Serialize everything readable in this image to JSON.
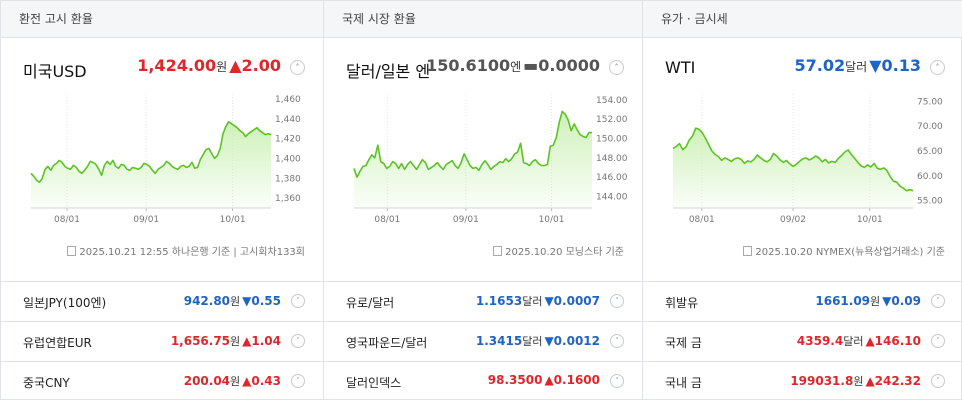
{
  "panels": [
    {
      "tab": "환전 고시 환율",
      "name": "미국USD",
      "value": "1,424.00",
      "unit": "원",
      "change": "▲2.00",
      "dir": "up",
      "toggle": "˄",
      "source": "2025.10.21 12:55 하나은행 기준 | 고시회차133회",
      "chart_data": {
        "type": "area",
        "x_ticks": [
          "08/01",
          "09/01",
          "10/01"
        ],
        "ylim": [
          1350,
          1465
        ],
        "y_ticks": [
          "1,460",
          "1,440",
          "1,420",
          "1,400",
          "1,380",
          "1,360"
        ],
        "y_tick_values": [
          1460,
          1440,
          1420,
          1400,
          1380,
          1360
        ],
        "values": [
          1385,
          1382,
          1378,
          1376,
          1380,
          1389,
          1392,
          1388,
          1393,
          1395,
          1398,
          1396,
          1392,
          1390,
          1389,
          1393,
          1391,
          1387,
          1385,
          1388,
          1392,
          1397,
          1396,
          1394,
          1389,
          1383,
          1393,
          1397,
          1394,
          1398,
          1392,
          1390,
          1394,
          1393,
          1389,
          1388,
          1391,
          1390,
          1389,
          1391,
          1395,
          1394,
          1392,
          1388,
          1385,
          1389,
          1391,
          1393,
          1397,
          1395,
          1392,
          1390,
          1389,
          1392,
          1393,
          1391,
          1392,
          1396,
          1390,
          1391,
          1399,
          1404,
          1409,
          1410,
          1405,
          1400,
          1403,
          1410,
          1425,
          1432,
          1437,
          1435,
          1433,
          1431,
          1428,
          1426,
          1422,
          1425,
          1427,
          1429,
          1431,
          1428,
          1426,
          1424,
          1425,
          1424
        ]
      }
    },
    {
      "tab": "국제 시장 환율",
      "name": "달러/일본 엔",
      "value": "150.6100",
      "unit": "엔",
      "change": "▬0.0000",
      "dir": "flat",
      "toggle": "˄",
      "source": "2025.10.20 모닝스타 기준",
      "chart_data": {
        "type": "area",
        "x_ticks": [
          "08/01",
          "09/01",
          "10/01"
        ],
        "ylim": [
          142.8,
          154.6
        ],
        "y_ticks": [
          "154.00",
          "152.00",
          "150.00",
          "148.00",
          "146.00",
          "144.00"
        ],
        "y_tick_values": [
          154,
          152,
          150,
          148,
          146,
          144
        ],
        "values": [
          146.9,
          146.0,
          146.6,
          147.1,
          147.2,
          147.8,
          148.3,
          148.0,
          149.3,
          147.6,
          147.4,
          146.9,
          147.1,
          147.6,
          147.4,
          146.9,
          147.4,
          146.8,
          147.3,
          147.6,
          147.2,
          146.8,
          147.3,
          147.8,
          147.5,
          146.8,
          147.0,
          147.2,
          147.5,
          147.1,
          146.8,
          147.3,
          147.5,
          147.7,
          147.2,
          146.9,
          147.5,
          148.4,
          147.8,
          147.2,
          146.9,
          147.0,
          146.7,
          147.3,
          147.7,
          147.3,
          146.8,
          147.1,
          147.3,
          147.6,
          147.5,
          147.9,
          147.6,
          147.9,
          148.4,
          148.6,
          149.5,
          147.5,
          147.4,
          147.2,
          147.6,
          147.8,
          147.4,
          147.2,
          147.2,
          147.3,
          149.2,
          149.3,
          150.1,
          151.7,
          152.8,
          152.5,
          151.9,
          150.8,
          151.5,
          150.9,
          150.4,
          150.2,
          150.1,
          150.6,
          150.6
        ]
      }
    },
    {
      "tab": "유가 · 금시세",
      "name": "WTI",
      "value": "57.02",
      "unit": "달러",
      "change": "▼0.13",
      "dir": "down",
      "toggle": "˄",
      "source": "2025.10.20 NYMEX(뉴욕상업거래소) 기준",
      "chart_data": {
        "type": "area",
        "x_ticks": [
          "08/01",
          "09/02",
          "10/01"
        ],
        "ylim": [
          53.5,
          76.5
        ],
        "y_ticks": [
          "75.00",
          "70.00",
          "65.00",
          "60.00",
          "55.00"
        ],
        "y_tick_values": [
          75,
          70,
          65,
          60,
          55
        ],
        "values": [
          65.5,
          65.9,
          66.5,
          65.3,
          65.8,
          67.2,
          68.0,
          69.6,
          69.4,
          68.7,
          67.6,
          66.3,
          65.0,
          64.3,
          63.9,
          63.1,
          63.6,
          63.3,
          62.9,
          63.4,
          63.6,
          63.3,
          62.5,
          63.0,
          62.8,
          63.3,
          64.2,
          63.6,
          63.1,
          62.8,
          63.3,
          64.5,
          64.0,
          63.2,
          62.7,
          63.1,
          62.4,
          61.9,
          62.3,
          62.9,
          63.4,
          63.6,
          63.2,
          63.5,
          64.0,
          63.6,
          62.8,
          63.3,
          62.6,
          62.9,
          62.7,
          63.5,
          64.1,
          64.8,
          65.2,
          64.3,
          63.5,
          62.7,
          62.0,
          61.7,
          62.2,
          61.8,
          62.5,
          61.5,
          61.3,
          61.6,
          61.0,
          59.8,
          58.9,
          58.7,
          57.9,
          57.5,
          57.0,
          57.2,
          57.0
        ]
      }
    }
  ],
  "rows": [
    [
      {
        "name": "일본JPY(100엔)",
        "value": "942.80",
        "unit": "원",
        "change": "▼0.55",
        "dir": "down",
        "toggle": "˅"
      },
      {
        "name": "유럽연합EUR",
        "value": "1,656.75",
        "unit": "원",
        "change": "▲1.04",
        "dir": "up",
        "toggle": "˅"
      },
      {
        "name": "중국CNY",
        "value": "200.04",
        "unit": "원",
        "change": "▲0.43",
        "dir": "up",
        "toggle": "˅"
      }
    ],
    [
      {
        "name": "유로/달러",
        "value": "1.1653",
        "unit": "달러",
        "change": "▼0.0007",
        "dir": "down",
        "toggle": "˅"
      },
      {
        "name": "영국파운드/달러",
        "value": "1.3415",
        "unit": "달러",
        "change": "▼0.0012",
        "dir": "down",
        "toggle": "˅"
      },
      {
        "name": "달러인덱스",
        "value": "98.3500",
        "unit": "",
        "change": "▲0.1600",
        "dir": "up",
        "toggle": "˅"
      }
    ],
    [
      {
        "name": "휘발유",
        "value": "1661.09",
        "unit": "원",
        "change": "▼0.09",
        "dir": "down",
        "toggle": "˅"
      },
      {
        "name": "국제 금",
        "value": "4359.4",
        "unit": "달러",
        "change": "▲146.10",
        "dir": "up",
        "toggle": "˅"
      },
      {
        "name": "국내 금",
        "value": "199031.8",
        "unit": "원",
        "change": "▲242.32",
        "dir": "up",
        "toggle": "˅"
      }
    ]
  ],
  "colors": {
    "up": "#e0262b",
    "down": "#1e63c7",
    "flat": "#555555",
    "line": "#5cc324",
    "fill": "#c9efb2"
  }
}
